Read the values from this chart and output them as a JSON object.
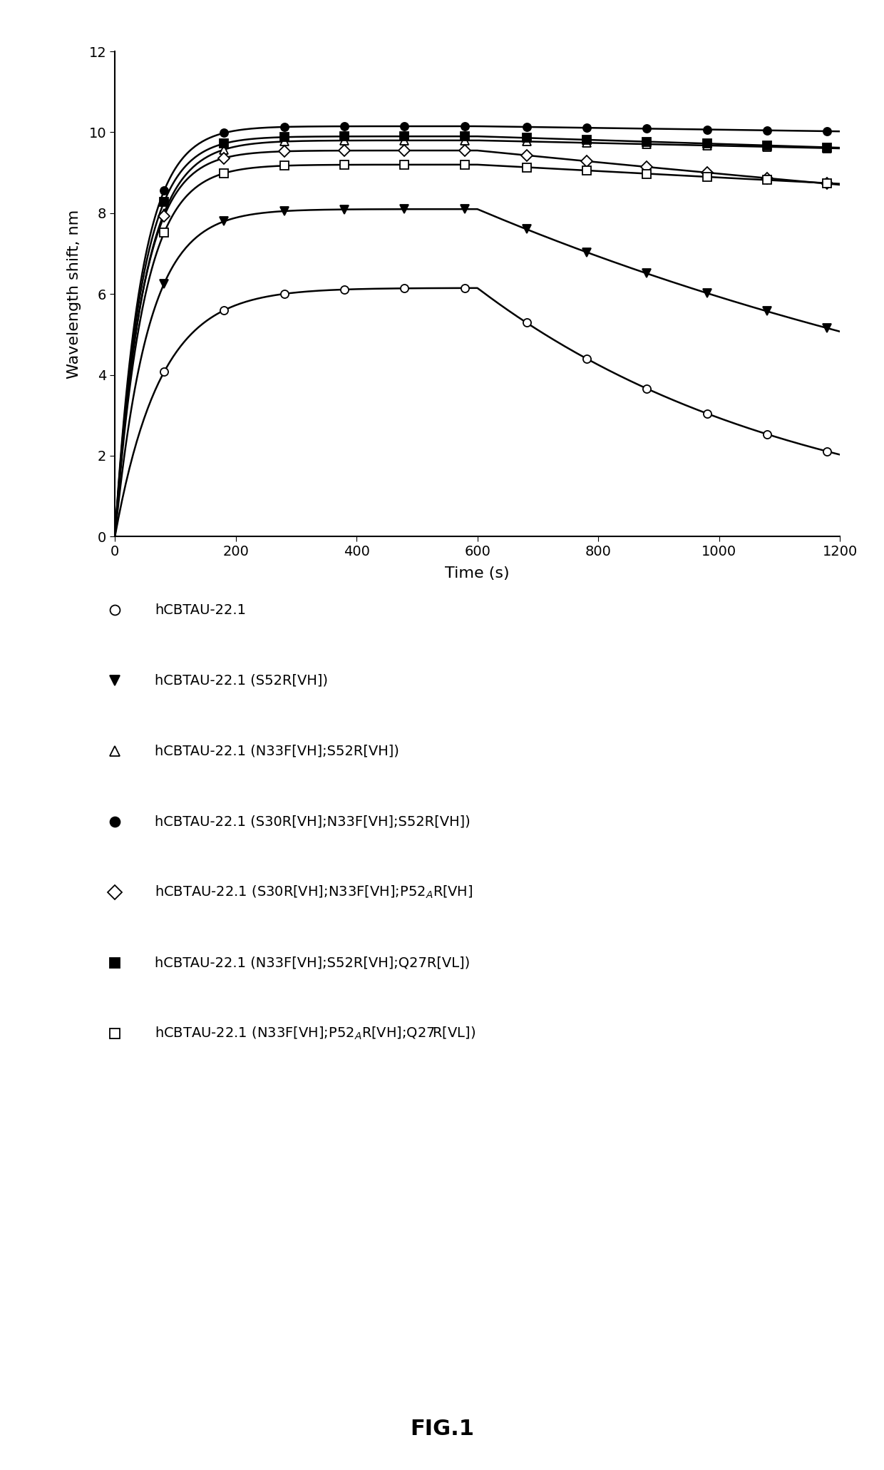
{
  "title": "FIG.1",
  "xlabel": "Time (s)",
  "ylabel": "Wavelength shift, nm",
  "xlim": [
    0,
    1200
  ],
  "ylim": [
    0,
    12
  ],
  "yticks": [
    0,
    2,
    4,
    6,
    8,
    10,
    12
  ],
  "xticks": [
    0,
    200,
    400,
    600,
    800,
    1000,
    1200
  ],
  "series": [
    {
      "marker": "o",
      "fillstyle": "none",
      "peak": 6.15,
      "final": 2.7,
      "rise_tau": 75,
      "dissoc_kd": 0.00185
    },
    {
      "marker": "v",
      "fillstyle": "full",
      "peak": 8.1,
      "final": 5.45,
      "rise_tau": 55,
      "dissoc_kd": 0.00078
    },
    {
      "marker": "^",
      "fillstyle": "none",
      "peak": 9.8,
      "final": 9.55,
      "rise_tau": 48,
      "dissoc_kd": 3.4e-05
    },
    {
      "marker": "o",
      "fillstyle": "full",
      "peak": 10.15,
      "final": 9.9,
      "rise_tau": 44,
      "dissoc_kd": 2.1e-05
    },
    {
      "marker": "D",
      "fillstyle": "none",
      "peak": 9.55,
      "final": 8.6,
      "rise_tau": 46,
      "dissoc_kd": 0.000155
    },
    {
      "marker": "s",
      "fillstyle": "full",
      "peak": 9.9,
      "final": 9.6,
      "rise_tau": 45,
      "dissoc_kd": 4.8e-05
    },
    {
      "marker": "s",
      "fillstyle": "none",
      "peak": 9.2,
      "final": 8.7,
      "rise_tau": 48,
      "dissoc_kd": 8.8e-05
    }
  ],
  "legend_labels": [
    "hCBTAU-22.1",
    "hCBTAU-22.1 (S52R[VH])",
    "hCBTAU-22.1 (N33F[VH];S52R[VH])",
    "hCBTAU-22.1 (S30R[VH];N33F[VH];S52R[VH])",
    "hCBTAU-22.1 (S30R[VH];N33F[VH];P52$_{A}$R[VH]",
    "hCBTAU-22.1 (N33F[VH];S52R[VH];Q27R[VL])",
    "hCBTAU-22.1 (N33F[VH];P52$_{A}$R[VH];Q27R[VL])"
  ],
  "background_color": "#ffffff",
  "linewidth": 1.8,
  "markersize": 8,
  "t_assoc_end": 600,
  "t_max": 1200
}
